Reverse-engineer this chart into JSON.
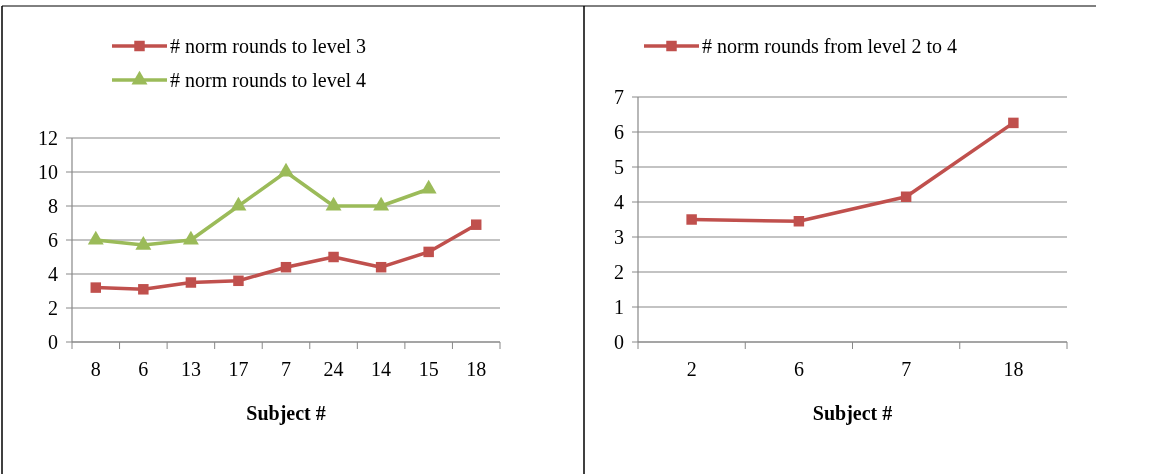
{
  "chart_data": [
    {
      "type": "line",
      "xlabel": "Subject #",
      "categories": [
        "8",
        "6",
        "13",
        "17",
        "7",
        "24",
        "14",
        "15",
        "18"
      ],
      "series": [
        {
          "name": "# norm rounds to level 3",
          "color": "#c0504d",
          "marker": "square",
          "values": [
            3.2,
            3.1,
            3.5,
            3.6,
            4.4,
            5.0,
            4.4,
            5.3,
            6.9
          ]
        },
        {
          "name": "# norm rounds to level 4",
          "color": "#9bbb59",
          "marker": "triangle",
          "values": [
            6,
            5.7,
            6,
            8,
            10,
            8,
            8,
            9,
            null
          ]
        }
      ],
      "ylim": [
        0,
        12
      ],
      "yticks": [
        0,
        2,
        4,
        6,
        8,
        10,
        12
      ],
      "grid": "y",
      "legend": "top"
    },
    {
      "type": "line",
      "xlabel": "Subject #",
      "categories": [
        "2",
        "6",
        "7",
        "18"
      ],
      "series": [
        {
          "name": "# norm rounds from level 2 to 4",
          "color": "#c0504d",
          "marker": "square",
          "values": [
            3.5,
            3.45,
            4.15,
            6.26
          ]
        }
      ],
      "ylim": [
        0,
        7
      ],
      "yticks": [
        0,
        1,
        2,
        3,
        4,
        5,
        6,
        7
      ],
      "grid": "y",
      "legend": "top"
    }
  ]
}
